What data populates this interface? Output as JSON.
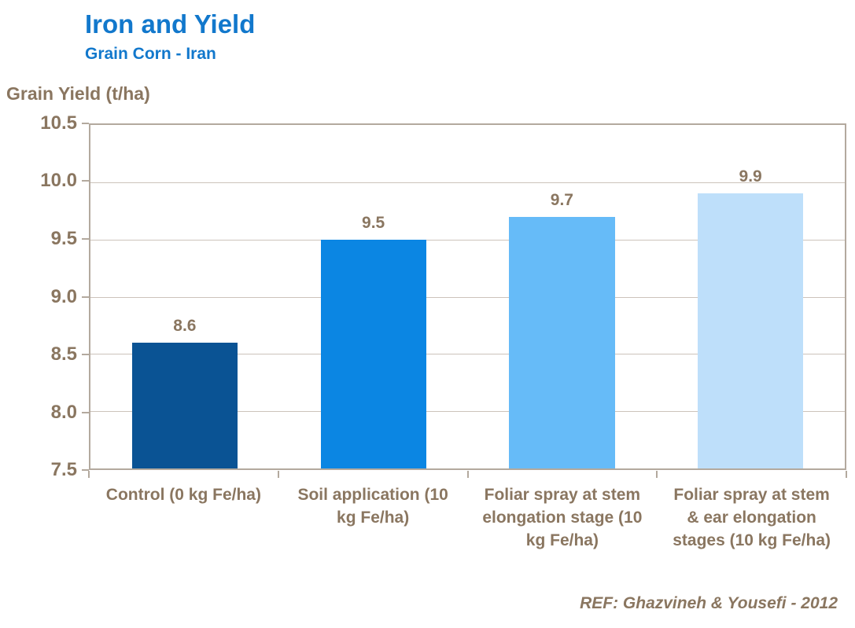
{
  "header": {
    "title": "Iron and Yield",
    "subtitle": "Grain Corn - Iran"
  },
  "footer": {
    "reference": "REF: Ghazvineh & Yousefi - 2012"
  },
  "chart_data": {
    "type": "bar",
    "title": "Iron and Yield",
    "subtitle": "Grain Corn - Iran",
    "xlabel": "",
    "ylabel": "Grain Yield (t/ha)",
    "ylim": [
      7.5,
      10.5
    ],
    "yticks": [
      10.5,
      10.0,
      9.5,
      9.0,
      8.5,
      8.0,
      7.5
    ],
    "ytick_decimals": 1,
    "grid": true,
    "legend": false,
    "categories": [
      "Control (0 kg Fe/ha)",
      "Soil application (10 kg Fe/ha)",
      "Foliar spray at stem elongation stage (10 kg Fe/ha)",
      "Foliar spray at stem & ear elongation stages (10 kg Fe/ha)"
    ],
    "values": [
      8.6,
      9.5,
      9.7,
      9.9
    ],
    "value_labels": [
      "8.6",
      "9.5",
      "9.7",
      "9.9"
    ],
    "bar_colors": [
      "#0A5394",
      "#0B86E3",
      "#66BBF8",
      "#BEDFFA"
    ]
  },
  "colors": {
    "title_blue": "#1278CC",
    "text_brown": "#8A7660",
    "gridline": "#CCC3BB",
    "axis_border": "#B3A99E",
    "background": "#FFFFFF"
  }
}
